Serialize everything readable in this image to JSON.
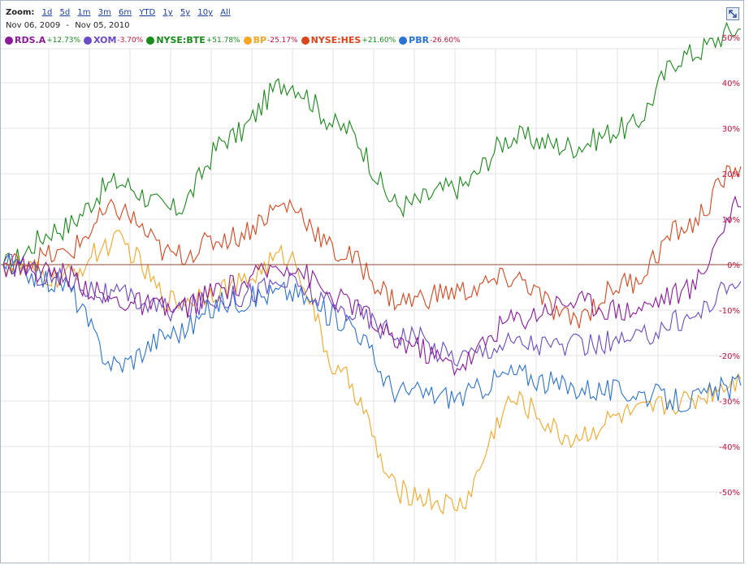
{
  "zoom": {
    "label": "Zoom:",
    "options": [
      "1d",
      "5d",
      "1m",
      "3m",
      "6m",
      "YTD",
      "1y",
      "5y",
      "10y",
      "All"
    ]
  },
  "date_range": {
    "start": "Nov 06, 2009",
    "separator": "-",
    "end": "Nov 05, 2010"
  },
  "legend": [
    {
      "name": "RDS.A",
      "change": "+12.73%",
      "color": "#8b1a9b"
    },
    {
      "name": "XOM",
      "change": "-3.70%",
      "color": "#6a4bc8"
    },
    {
      "name": "NYSE:BTE",
      "change": "+51.78%",
      "color": "#1a8a1a"
    },
    {
      "name": "BP",
      "change": "-25.17%",
      "color": "#f5a623"
    },
    {
      "name": "NYSE:HES",
      "change": "+21.60%",
      "color": "#d9451c"
    },
    {
      "name": "PBR",
      "change": "-26.60%",
      "color": "#2a72d4"
    }
  ],
  "colors": {
    "positive_change": "#1a8a1a",
    "negative_change": "#c0123c",
    "grid": "#e3e3e3",
    "zero_line": "#8b4a3a",
    "axis_text": "#c0123c"
  },
  "chart_data": {
    "type": "line",
    "x": [
      0,
      4,
      8,
      12,
      16,
      20,
      24,
      28,
      32,
      36,
      40,
      44,
      48,
      52
    ],
    "ylim": [
      -55,
      54
    ],
    "y_ticks": [
      50,
      40,
      30,
      20,
      10,
      0,
      -10,
      -20,
      -30,
      -40,
      -50
    ],
    "y_tick_labels": [
      "50%",
      "40%",
      "30%",
      "20%",
      "10%",
      "0%",
      "-10%",
      "-20%",
      "-30%",
      "-40%",
      "-50%"
    ],
    "grid": true,
    "legend_position": "top-left",
    "series": [
      {
        "name": "RDS.A",
        "values": [
          0,
          -2,
          -8,
          -10,
          -5,
          0,
          -8,
          -17,
          -22,
          -12,
          -8,
          -10,
          -6,
          12.7
        ]
      },
      {
        "name": "XOM",
        "values": [
          0,
          -3,
          -7,
          -10,
          -7,
          -4,
          -10,
          -15,
          -20,
          -17,
          -18,
          -17,
          -12,
          -3.7
        ]
      },
      {
        "name": "NYSE:BTE",
        "values": [
          0,
          8,
          18,
          12,
          28,
          40,
          30,
          13,
          17,
          28,
          26,
          30,
          46,
          51.8
        ]
      },
      {
        "name": "BP",
        "values": [
          0,
          -3,
          5,
          -8,
          -5,
          2,
          -25,
          -50,
          -53,
          -30,
          -38,
          -33,
          -30,
          -25.2
        ]
      },
      {
        "name": "NYSE:HES",
        "values": [
          0,
          2,
          12,
          2,
          6,
          13,
          2,
          -8,
          -6,
          -3,
          -12,
          -4,
          8,
          21.6
        ]
      },
      {
        "name": "PBR",
        "values": [
          0,
          -4,
          -22,
          -15,
          -8,
          -6,
          -12,
          -28,
          -29,
          -24,
          -27,
          -28,
          -30,
          -26.6
        ]
      }
    ]
  }
}
